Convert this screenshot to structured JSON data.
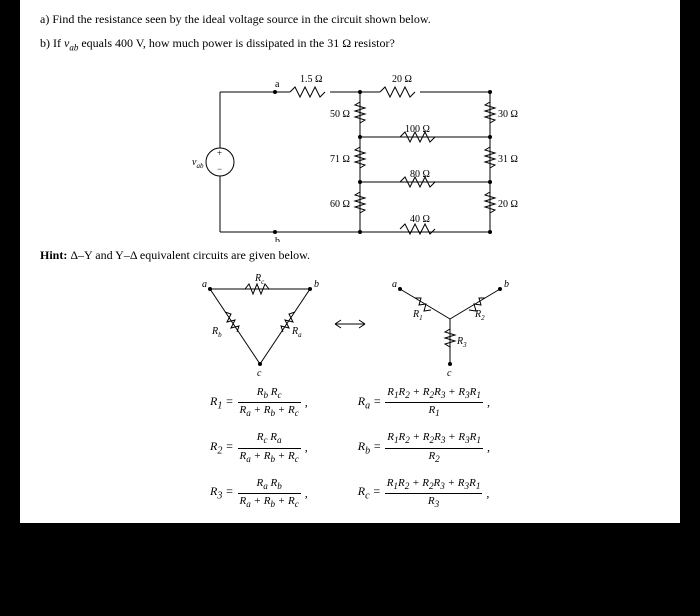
{
  "question_a": "a) Find the resistance seen by the ideal voltage source in the circuit shown below.",
  "question_b_prefix": "b) If ",
  "question_b_var": "v",
  "question_b_sub": "ab",
  "question_b_suffix": " equals 400 V, how much power is dissipated in the 31 Ω resistor?",
  "hint_text": "Hint: Δ–Y and Y–Δ equivalent circuits are given below.",
  "circuit": {
    "labels": {
      "a": "a",
      "b": "b",
      "vab": "v",
      "vab_sub": "ab",
      "r1_5": "1.5 Ω",
      "r20": "20 Ω",
      "r50": "50 Ω",
      "r100": "100 Ω",
      "r30": "30 Ω",
      "r71": "71 Ω",
      "r80": "80 Ω",
      "r31": "31 Ω",
      "r60": "60 Ω",
      "r40": "40 Ω",
      "r20b": "20 Ω"
    }
  },
  "hint_diagram": {
    "a": "a",
    "b": "b",
    "c": "c",
    "Rc": "R",
    "Rc_sub": "c",
    "Ra": "R",
    "Ra_sub": "a",
    "Rb": "R",
    "Rb_sub": "b",
    "R1": "R",
    "R1_sub": "1",
    "R2": "R",
    "R2_sub": "2",
    "R3": "R",
    "R3_sub": "3"
  },
  "formulas": {
    "left": [
      {
        "lhs": "R<sub>1</sub> =",
        "num": "R<sub>b</sub> R<sub>c</sub>",
        "den": "R<sub>a</sub> + R<sub>b</sub> + R<sub>c</sub>"
      },
      {
        "lhs": "R<sub>2</sub> =",
        "num": "R<sub>c</sub> R<sub>a</sub>",
        "den": "R<sub>a</sub> + R<sub>b</sub> + R<sub>c</sub>"
      },
      {
        "lhs": "R<sub>3</sub> =",
        "num": "R<sub>a</sub> R<sub>b</sub>",
        "den": "R<sub>a</sub> + R<sub>b</sub> + R<sub>c</sub>"
      }
    ],
    "right": [
      {
        "lhs": "R<sub>a</sub> =",
        "num": "R<sub>1</sub>R<sub>2</sub> + R<sub>2</sub>R<sub>3</sub> + R<sub>3</sub>R<sub>1</sub>",
        "den": "R<sub>1</sub>"
      },
      {
        "lhs": "R<sub>b</sub> =",
        "num": "R<sub>1</sub>R<sub>2</sub> + R<sub>2</sub>R<sub>3</sub> + R<sub>3</sub>R<sub>1</sub>",
        "den": "R<sub>2</sub>"
      },
      {
        "lhs": "R<sub>c</sub> =",
        "num": "R<sub>1</sub>R<sub>2</sub> + R<sub>2</sub>R<sub>3</sub> + R<sub>3</sub>R<sub>1</sub>",
        "den": "R<sub>3</sub>"
      }
    ]
  }
}
